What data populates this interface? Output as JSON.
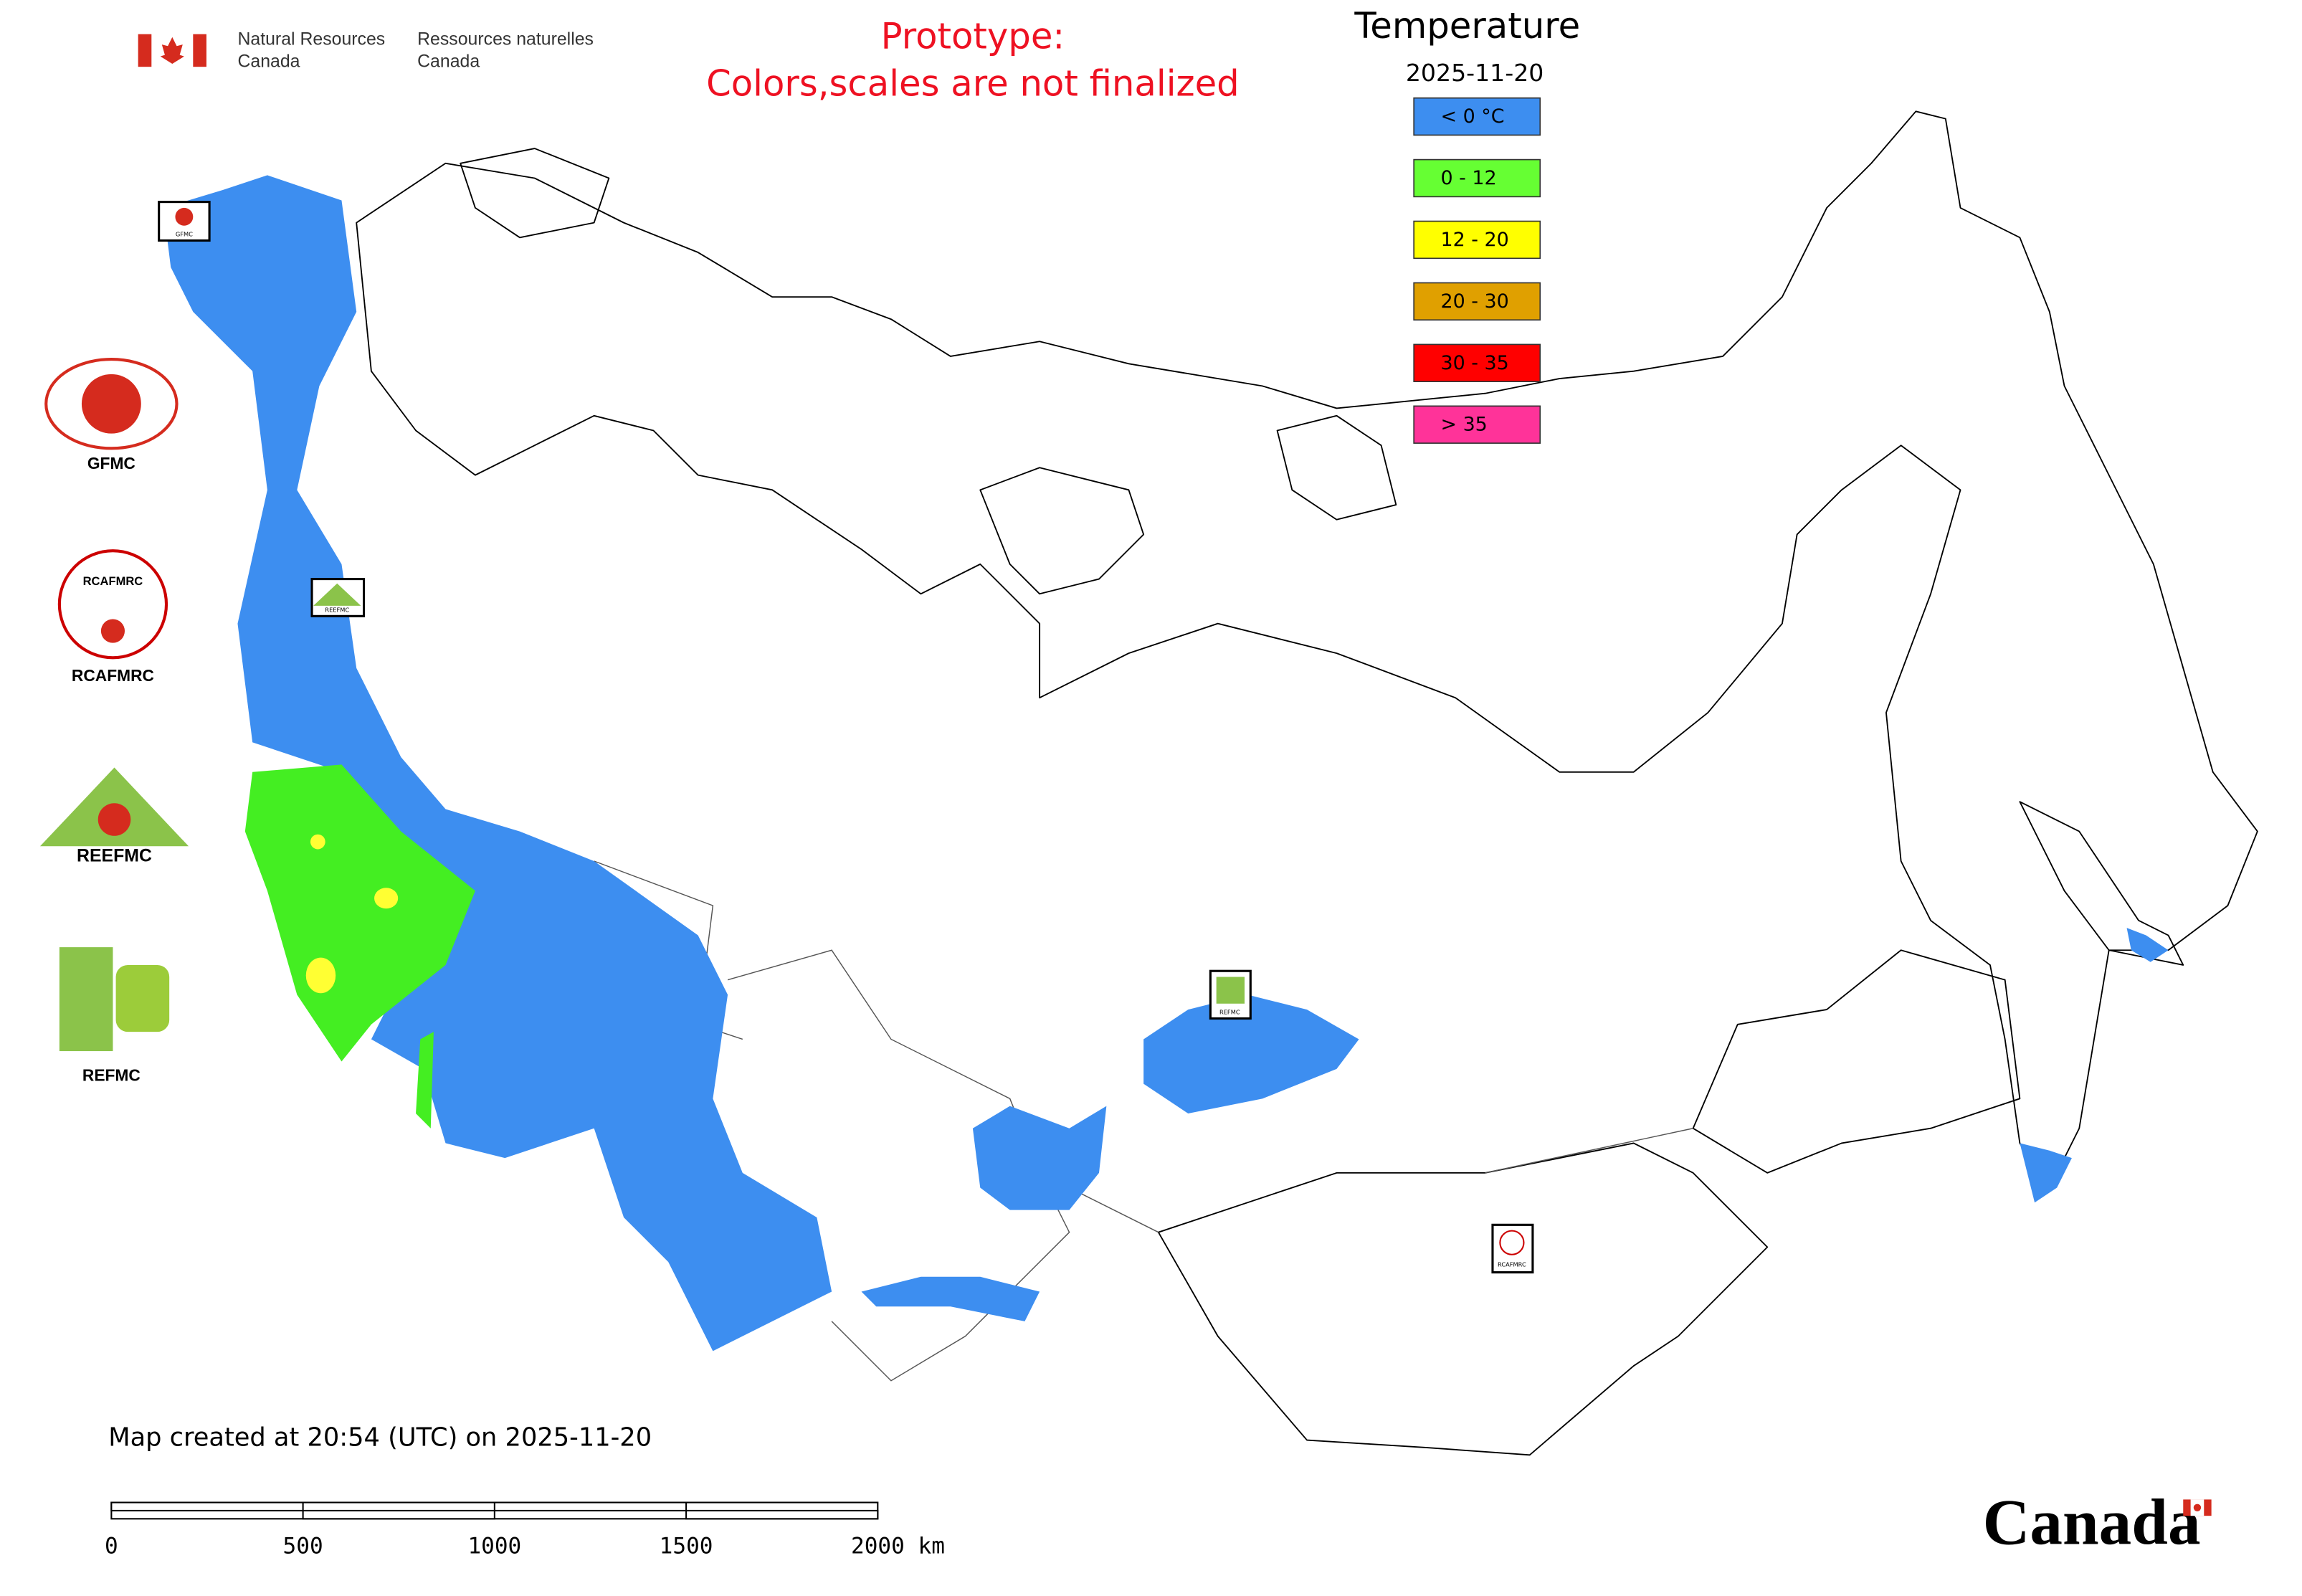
{
  "header": {
    "agency_en": [
      "Natural Resources",
      "Canada"
    ],
    "agency_fr": [
      "Ressources naturelles",
      "Canada"
    ]
  },
  "notice": [
    "Prototype:",
    "Colors,scales are not finalized"
  ],
  "legend": {
    "title": "Temperature",
    "date": "2025-11-20",
    "items": [
      {
        "label": "< 0 °C",
        "color": "#3d8ef0"
      },
      {
        "label": "0 - 12",
        "color": "#66ff33"
      },
      {
        "label": "12 - 20",
        "color": "#ffff00"
      },
      {
        "label": "20 - 30",
        "color": "#e0a000"
      },
      {
        "label": "30 - 35",
        "color": "#ff0000"
      },
      {
        "label": "> 35",
        "color": "#ff3399"
      }
    ]
  },
  "logos": {
    "gfmc": "GFMC",
    "rcafmrc": "RCAFMRC",
    "rcafmrc_inner": "RCAFMRC",
    "reefmc_inner": "REEFMC",
    "refmc": "REFMC"
  },
  "markers": [
    "GFMC",
    "REEFMC",
    "REFMC",
    "RCAFMRC"
  ],
  "footer": {
    "created": "Map created at 20:54 (UTC) on 2025-11-20",
    "scale_labels": [
      "0",
      "500",
      "1000",
      "1500",
      "2000 km"
    ],
    "wordmark": "Canada"
  }
}
